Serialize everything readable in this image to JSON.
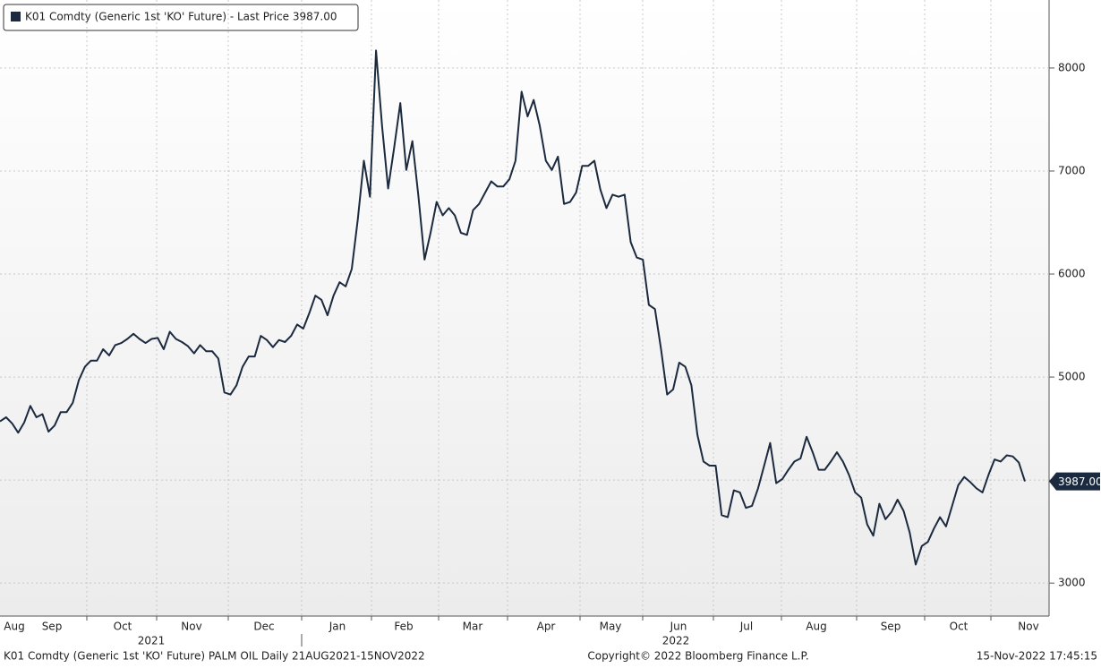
{
  "chart_data": {
    "type": "line",
    "legend": "K01 Comdty (Generic 1st 'KO' Future) - Last Price 3987.00",
    "series": [
      {
        "name": "K01 Comdty (Generic 1st 'KO' Future)",
        "color": "#1b2a3e",
        "values": [
          4570,
          4610,
          4550,
          4460,
          4560,
          4720,
          4610,
          4640,
          4470,
          4530,
          4660,
          4660,
          4750,
          4970,
          5100,
          5160,
          5160,
          5270,
          5210,
          5310,
          5330,
          5370,
          5420,
          5370,
          5330,
          5370,
          5380,
          5270,
          5440,
          5370,
          5340,
          5300,
          5230,
          5310,
          5250,
          5250,
          5180,
          4850,
          4830,
          4920,
          5100,
          5200,
          5200,
          5400,
          5360,
          5290,
          5360,
          5340,
          5400,
          5510,
          5470,
          5620,
          5790,
          5750,
          5600,
          5790,
          5920,
          5880,
          6050,
          6530,
          7100,
          6750,
          8170,
          7440,
          6830,
          7230,
          7660,
          7010,
          7290,
          6750,
          6140,
          6400,
          6700,
          6570,
          6640,
          6570,
          6400,
          6380,
          6620,
          6680,
          6790,
          6900,
          6850,
          6850,
          6920,
          7100,
          7770,
          7530,
          7690,
          7440,
          7100,
          7010,
          7140,
          6680,
          6700,
          6790,
          7050,
          7050,
          7100,
          6820,
          6640,
          6770,
          6750,
          6770,
          6310,
          6160,
          6140,
          5700,
          5660,
          5270,
          4830,
          4880,
          5140,
          5100,
          4920,
          4440,
          4180,
          4140,
          4140,
          3660,
          3640,
          3900,
          3880,
          3730,
          3750,
          3920,
          4140,
          4360,
          3970,
          4010,
          4100,
          4180,
          4210,
          4420,
          4270,
          4100,
          4100,
          4180,
          4270,
          4180,
          4050,
          3880,
          3830,
          3570,
          3460,
          3770,
          3620,
          3690,
          3810,
          3700,
          3490,
          3180,
          3360,
          3400,
          3530,
          3640,
          3550,
          3750,
          3950,
          4030,
          3980,
          3920,
          3880,
          4050,
          4200,
          4180,
          4240,
          4230,
          4170,
          3987
        ]
      }
    ],
    "last_label": "3987.00",
    "months": [
      "Aug",
      "Sep",
      "Oct",
      "Nov",
      "Dec",
      "Jan",
      "Feb",
      "Mar",
      "Apr",
      "May",
      "Jun",
      "Jul",
      "Aug",
      "Sep",
      "Oct",
      "Nov"
    ],
    "years": [
      "2021",
      "2022"
    ],
    "ylim": [
      2680,
      8660
    ],
    "yticks": [
      3000,
      4000,
      5000,
      6000,
      7000,
      8000
    ],
    "grid": true,
    "footer_left": "K01 Comdty (Generic 1st 'KO' Future) PALM OIL  Daily 21AUG2021-15NOV2022",
    "footer_center": "Copyright© 2022 Bloomberg Finance L.P.",
    "footer_right": "15-Nov-2022 17:45:15"
  }
}
